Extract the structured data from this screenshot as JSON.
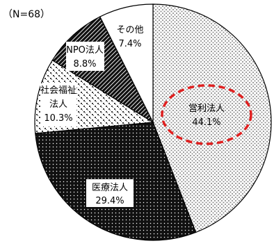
{
  "chart_data": {
    "type": "pie",
    "note": "（N=68）",
    "slices": [
      {
        "label": "営利法人",
        "percent_text": "44.1%",
        "value": 44.1,
        "pattern": "light-dots",
        "highlight": true
      },
      {
        "label": "医療法人",
        "percent_text": "29.4%",
        "value": 29.4,
        "pattern": "dark-dots"
      },
      {
        "label_lines": [
          "社会福祉",
          "法人"
        ],
        "percent_text": "10.3%",
        "value": 10.3,
        "pattern": "checker-light"
      },
      {
        "label": "NPO法人",
        "percent_text": "8.8%",
        "value": 8.8,
        "pattern": "dark-diagonal"
      },
      {
        "label": "その他",
        "percent_text": "7.4%",
        "value": 7.4,
        "pattern": "white"
      }
    ],
    "highlight_color": "#e02020"
  }
}
